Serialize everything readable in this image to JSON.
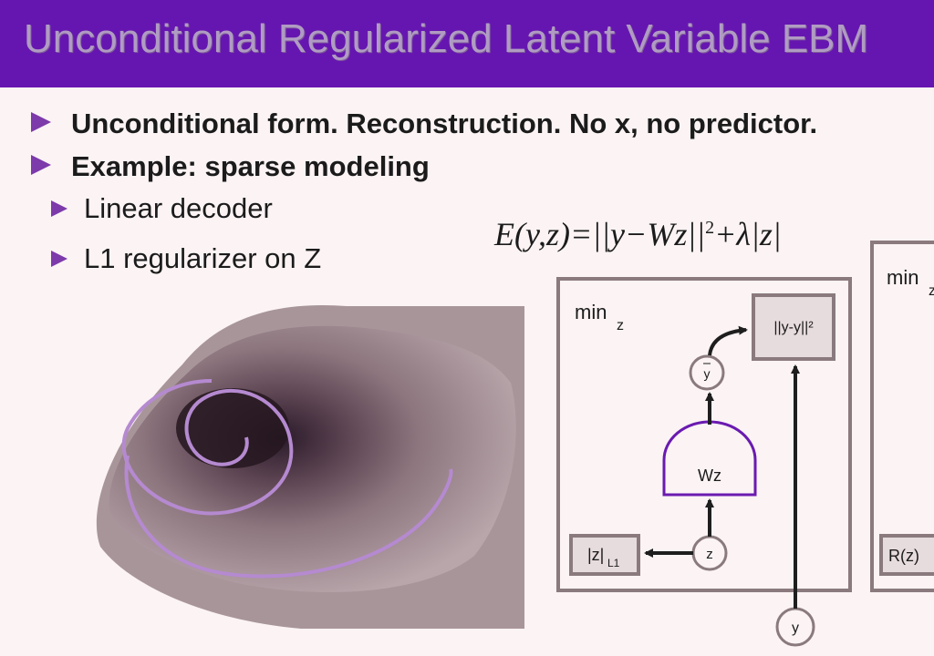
{
  "slide": {
    "title": "Unconditional Regularized Latent Variable EBM",
    "bullets": [
      "Unconditional form. Reconstruction. No x, no predictor.",
      "Example: sparse modeling"
    ],
    "sub_bullets": [
      "Linear decoder",
      "L1 regularizer on Z"
    ],
    "formula": {
      "lhs": "E(y,z)=",
      "rhs_a": "||y−Wz||",
      "exp": "2",
      "rhs_b": "+λ|z|"
    }
  },
  "diagram": {
    "min_label": "min",
    "min_sub": "z",
    "cost_label": "||y-y||²",
    "ybar_label": "y",
    "decoder_label": "Wz",
    "z_label": "z",
    "reg_label": "|z|",
    "reg_sub": "L1",
    "y_label": "y",
    "right_min_label": "min",
    "right_min_sub": "z",
    "right_reg_label": "R(z)"
  },
  "colors": {
    "title_bg": "#6616b0",
    "title_text": "#b09cc2",
    "accent": "#7d3aaa",
    "box_border": "#8a7a7e",
    "decoder_stroke": "#6a1ab0",
    "spiral": "#b58ad0"
  }
}
